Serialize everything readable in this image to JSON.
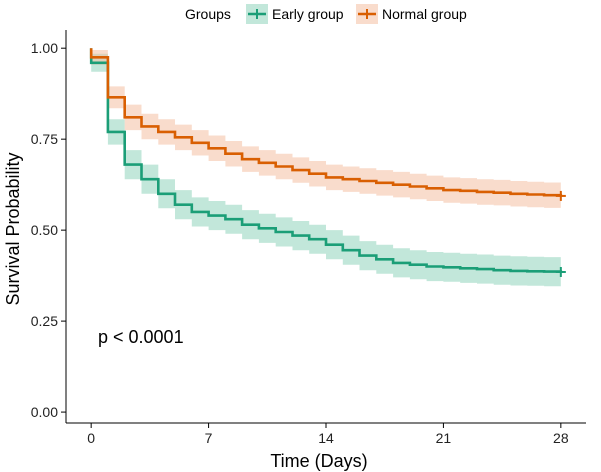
{
  "chart_data": {
    "type": "line",
    "subtype": "kaplan-meier-step",
    "title": "",
    "xlabel": "Time (Days)",
    "ylabel": "Survival Probability",
    "xlim": [
      -1.5,
      29.5
    ],
    "ylim": [
      -0.03,
      1.05
    ],
    "x_ticks": [
      0,
      7,
      14,
      21,
      28
    ],
    "y_ticks": [
      0.0,
      0.25,
      0.5,
      0.75,
      1.0
    ],
    "x_tick_labels": [
      "0",
      "7",
      "14",
      "21",
      "28"
    ],
    "y_tick_labels": [
      "0.00",
      "0.25",
      "0.50",
      "0.75",
      "1.00"
    ],
    "legend": {
      "title": "Groups",
      "position": "top",
      "entries": [
        "Early group",
        "Normal group"
      ]
    },
    "annotation": "p < 0.0001",
    "series": [
      {
        "name": "Early group",
        "color": "#1b9e77",
        "ci_color": "#8fd4bc",
        "times": [
          0,
          1,
          2,
          3,
          4,
          5,
          6,
          7,
          8,
          9,
          10,
          11,
          12,
          13,
          14,
          15,
          16,
          17,
          18,
          19,
          20,
          21,
          22,
          23,
          24,
          25,
          26,
          27,
          28
        ],
        "values": [
          0.96,
          0.77,
          0.68,
          0.64,
          0.6,
          0.57,
          0.55,
          0.54,
          0.53,
          0.515,
          0.505,
          0.495,
          0.485,
          0.475,
          0.46,
          0.445,
          0.43,
          0.42,
          0.41,
          0.405,
          0.4,
          0.398,
          0.395,
          0.393,
          0.39,
          0.388,
          0.387,
          0.386,
          0.385
        ],
        "lower": [
          0.935,
          0.735,
          0.64,
          0.6,
          0.56,
          0.53,
          0.51,
          0.5,
          0.49,
          0.475,
          0.465,
          0.455,
          0.445,
          0.435,
          0.42,
          0.405,
          0.39,
          0.38,
          0.37,
          0.365,
          0.36,
          0.358,
          0.355,
          0.353,
          0.35,
          0.348,
          0.347,
          0.346,
          0.345
        ],
        "upper": [
          0.985,
          0.805,
          0.72,
          0.68,
          0.64,
          0.61,
          0.59,
          0.58,
          0.57,
          0.555,
          0.545,
          0.535,
          0.525,
          0.515,
          0.5,
          0.485,
          0.47,
          0.46,
          0.45,
          0.445,
          0.44,
          0.438,
          0.435,
          0.433,
          0.43,
          0.428,
          0.427,
          0.426,
          0.425
        ],
        "censor_marks": [
          [
            28,
            0.385
          ]
        ]
      },
      {
        "name": "Normal group",
        "color": "#d95f02",
        "ci_color": "#f4bfa3",
        "times": [
          0,
          1,
          2,
          3,
          4,
          5,
          6,
          7,
          8,
          9,
          10,
          11,
          12,
          13,
          14,
          15,
          16,
          17,
          18,
          19,
          20,
          21,
          22,
          23,
          24,
          25,
          26,
          27,
          28
        ],
        "values": [
          0.975,
          0.865,
          0.81,
          0.785,
          0.77,
          0.755,
          0.74,
          0.725,
          0.71,
          0.695,
          0.685,
          0.675,
          0.665,
          0.655,
          0.645,
          0.64,
          0.635,
          0.63,
          0.625,
          0.62,
          0.615,
          0.61,
          0.608,
          0.605,
          0.603,
          0.6,
          0.598,
          0.596,
          0.594
        ],
        "lower": [
          0.955,
          0.835,
          0.775,
          0.75,
          0.735,
          0.72,
          0.705,
          0.69,
          0.675,
          0.66,
          0.65,
          0.64,
          0.63,
          0.62,
          0.61,
          0.605,
          0.6,
          0.595,
          0.59,
          0.585,
          0.58,
          0.575,
          0.573,
          0.57,
          0.568,
          0.565,
          0.563,
          0.561,
          0.559
        ],
        "upper": [
          0.995,
          0.895,
          0.845,
          0.82,
          0.805,
          0.79,
          0.775,
          0.76,
          0.745,
          0.73,
          0.72,
          0.71,
          0.7,
          0.69,
          0.68,
          0.675,
          0.67,
          0.665,
          0.66,
          0.655,
          0.65,
          0.645,
          0.643,
          0.64,
          0.638,
          0.635,
          0.633,
          0.631,
          0.629
        ],
        "censor_marks": [
          [
            28,
            0.594
          ]
        ]
      }
    ]
  }
}
